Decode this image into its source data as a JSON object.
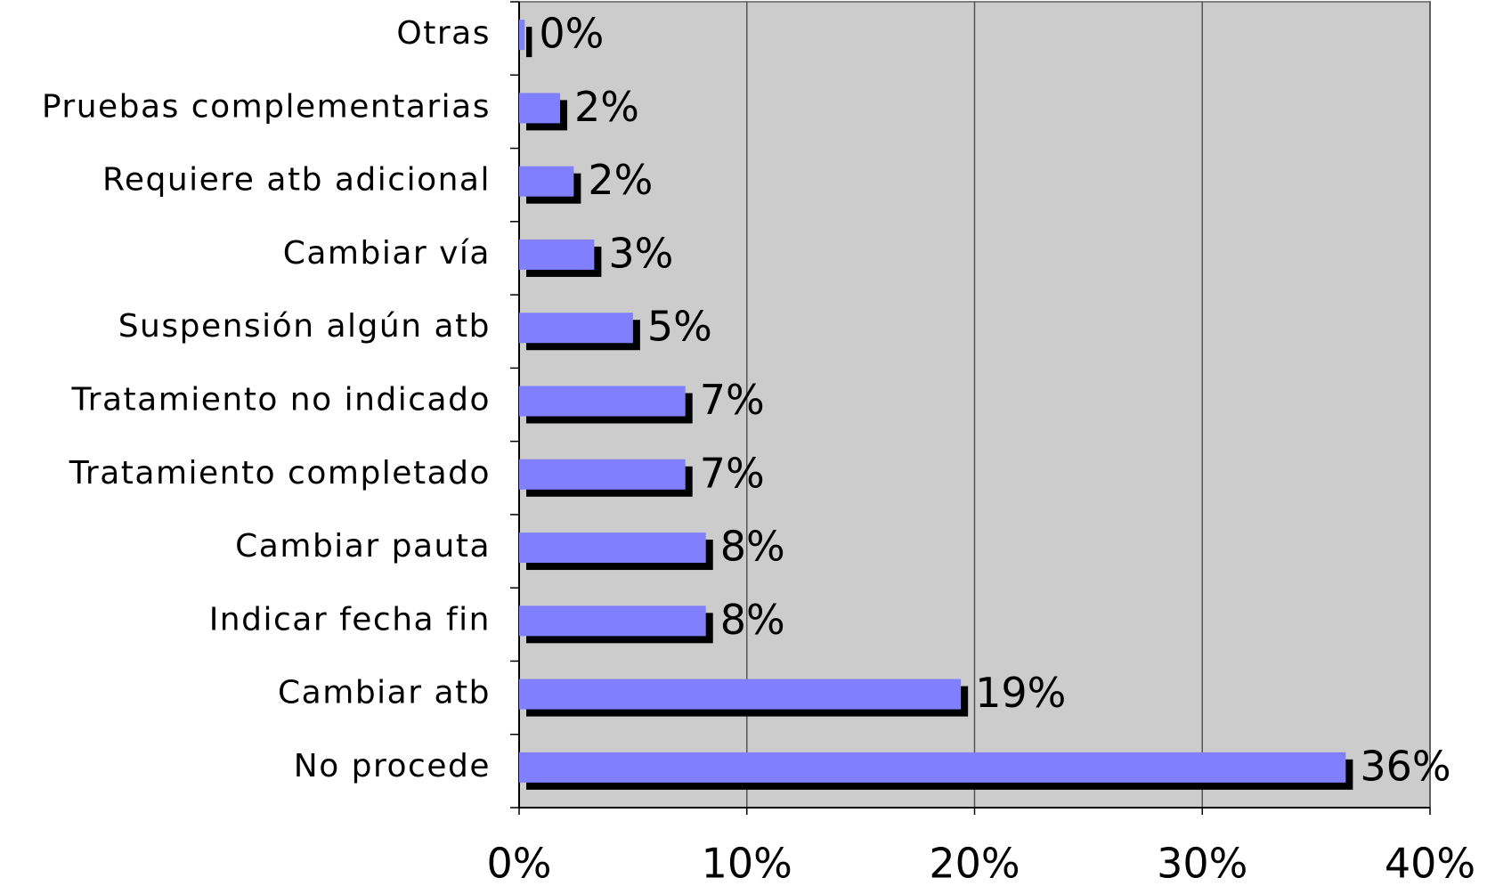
{
  "chart_data": {
    "type": "bar",
    "orientation": "horizontal",
    "categories": [
      "Otras",
      "Pruebas complementarias",
      "Requiere atb adicional",
      "Cambiar vía",
      "Suspensión algún atb",
      "Tratamiento no indicado",
      "Tratamiento completado",
      "Cambiar pauta",
      "Indicar fecha fin",
      "Cambiar atb",
      "No procede"
    ],
    "values": [
      0.25,
      1.8,
      2.4,
      3.3,
      5.0,
      7.3,
      7.3,
      8.2,
      8.2,
      19.4,
      36.3
    ],
    "value_labels": [
      "0%",
      "2%",
      "2%",
      "3%",
      "5%",
      "7%",
      "7%",
      "8%",
      "8%",
      "19%",
      "36%"
    ],
    "color": "#8080ff",
    "shadow_color": "#000000",
    "background": "#cccccc",
    "xlim": [
      0,
      40
    ],
    "xticks": [
      {
        "value": 0,
        "label": "0%"
      },
      {
        "value": 10,
        "label": "10%"
      },
      {
        "value": 20,
        "label": "20%"
      },
      {
        "value": 30,
        "label": "30%"
      },
      {
        "value": 40,
        "label": "40%"
      }
    ],
    "grid": true
  }
}
